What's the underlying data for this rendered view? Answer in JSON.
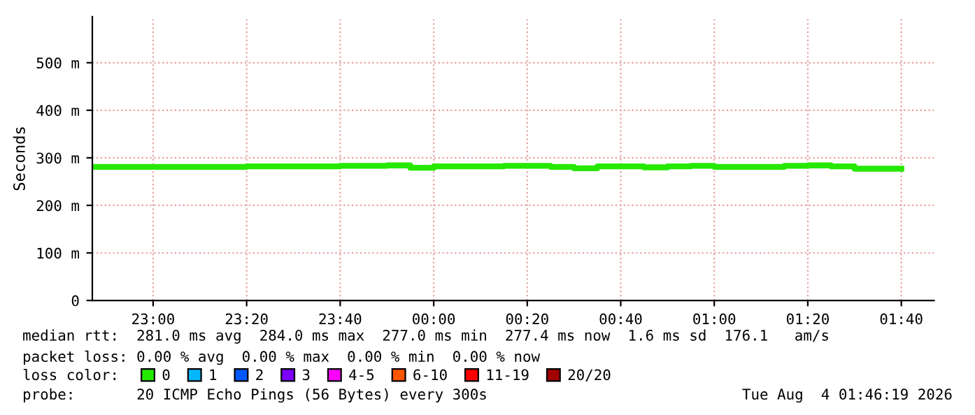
{
  "chart_data": {
    "type": "step",
    "ylabel": "Seconds",
    "x": [
      "2026-08-03T22:47",
      "2026-08-03T23:20",
      "2026-08-03T23:40",
      "2026-08-03T23:50",
      "2026-08-03T23:55",
      "2026-08-04T00:00",
      "2026-08-04T00:15",
      "2026-08-04T00:25",
      "2026-08-04T00:30",
      "2026-08-04T00:35",
      "2026-08-04T00:45",
      "2026-08-04T00:50",
      "2026-08-04T00:55",
      "2026-08-04T01:00",
      "2026-08-04T01:15",
      "2026-08-04T01:20",
      "2026-08-04T01:25",
      "2026-08-04T01:30",
      "2026-08-04T01:40"
    ],
    "series": [
      {
        "name": "0",
        "color": "#26e800",
        "values": [
          281,
          282,
          283,
          284,
          279,
          282,
          283,
          281,
          278,
          282,
          280,
          282,
          283,
          281,
          283,
          284,
          282,
          277,
          277
        ]
      },
      {
        "name": "1",
        "color": "#00b8ff",
        "values": [
          null,
          null,
          null,
          null,
          null,
          null,
          null,
          null,
          null,
          null,
          null,
          null,
          null,
          null,
          null,
          null,
          null,
          null,
          null
        ]
      },
      {
        "name": "2",
        "color": "#0059ff",
        "values": [
          null,
          null,
          null,
          null,
          null,
          null,
          null,
          null,
          null,
          null,
          null,
          null,
          null,
          null,
          null,
          null,
          null,
          null,
          null
        ]
      },
      {
        "name": "3",
        "color": "#7e00ff",
        "values": [
          null,
          null,
          null,
          null,
          null,
          null,
          null,
          null,
          null,
          null,
          null,
          null,
          null,
          null,
          null,
          null,
          null,
          null,
          null
        ]
      },
      {
        "name": "4-5",
        "color": "#ff00ff",
        "values": [
          null,
          null,
          null,
          null,
          null,
          null,
          null,
          null,
          null,
          null,
          null,
          null,
          null,
          null,
          null,
          null,
          null,
          null,
          null
        ]
      },
      {
        "name": "6-10",
        "color": "#ff5500",
        "values": [
          null,
          null,
          null,
          null,
          null,
          null,
          null,
          null,
          null,
          null,
          null,
          null,
          null,
          null,
          null,
          null,
          null,
          null,
          null
        ]
      },
      {
        "name": "11-19",
        "color": "#ff0000",
        "values": [
          null,
          null,
          null,
          null,
          null,
          null,
          null,
          null,
          null,
          null,
          null,
          null,
          null,
          null,
          null,
          null,
          null,
          null,
          null
        ]
      },
      {
        "name": "20/20",
        "color": "#a10000",
        "values": [
          null,
          null,
          null,
          null,
          null,
          null,
          null,
          null,
          null,
          null,
          null,
          null,
          null,
          null,
          null,
          null,
          null,
          null,
          null
        ]
      }
    ],
    "legend": "bottom",
    "legend_title": "loss color:",
    "xlim": [
      "2026-08-03T22:47",
      "2026-08-04T01:47"
    ],
    "xticks": [
      {
        "value": "2026-08-03T23:00",
        "label": "23:00"
      },
      {
        "value": "2026-08-03T23:20",
        "label": "23:20"
      },
      {
        "value": "2026-08-03T23:40",
        "label": "23:40"
      },
      {
        "value": "2026-08-04T00:00",
        "label": "00:00"
      },
      {
        "value": "2026-08-04T00:20",
        "label": "00:20"
      },
      {
        "value": "2026-08-04T00:40",
        "label": "00:40"
      },
      {
        "value": "2026-08-04T01:00",
        "label": "01:00"
      },
      {
        "value": "2026-08-04T01:20",
        "label": "01:20"
      },
      {
        "value": "2026-08-04T01:40",
        "label": "01:40"
      }
    ],
    "ylim": [
      0,
      597
    ],
    "yticks": [
      0,
      {
        "value": 100,
        "label": "100 m"
      },
      {
        "value": 200,
        "label": "200 m"
      },
      {
        "value": 300,
        "label": "300 m"
      },
      {
        "value": 400,
        "label": "400 m"
      },
      {
        "value": 500,
        "label": "500 m"
      }
    ],
    "grid": true,
    "annotations": [
      "median rtt:  281.0 ms avg  284.0 ms max  277.0 ms min  277.4 ms now  1.6 ms sd  176.1   am/s",
      "packet loss: 0.00 % avg  0.00 % max  0.00 % min  0.00 % now",
      "probe:       20 ICMP Echo Pings (56 Bytes) every 300s",
      "Tue Aug  4 01:46:19 2026"
    ]
  }
}
